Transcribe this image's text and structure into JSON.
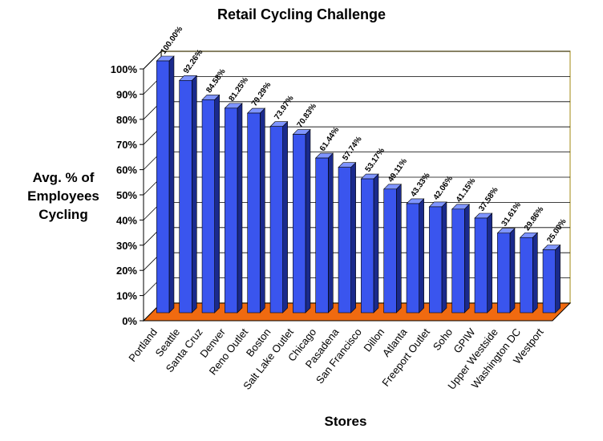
{
  "chart_data": {
    "type": "bar",
    "title": "Retail Cycling Challenge",
    "ylabel": "Avg. % of Employees Cycling",
    "xlabel": "Stores",
    "categories": [
      "Portland",
      "Seattle",
      "Santa Cruz",
      "Denver",
      "Reno Outlet",
      "Boston",
      "Salt Lake Outlet",
      "Chicago",
      "Pasadena",
      "San Francisco",
      "Dillon",
      "Atlanta",
      "Freeport Outlet",
      "Soho",
      "GPIW",
      "Upper Westside",
      "Washington DC",
      "Westport"
    ],
    "values": [
      100.0,
      92.26,
      84.58,
      81.25,
      79.29,
      73.97,
      70.83,
      61.44,
      57.74,
      53.17,
      49.11,
      43.33,
      42.06,
      41.15,
      37.58,
      31.61,
      29.86,
      25.0
    ],
    "data_labels": [
      "100.00%",
      "92.26%",
      "84.58%",
      "81.25%",
      "79.29%",
      "73.97%",
      "70.83%",
      "61.44%",
      "57.74%",
      "53.17%",
      "49.11%",
      "43.33%",
      "42.06%",
      "41.15%",
      "37.58%",
      "31.61%",
      "29.86%",
      "25.00%"
    ],
    "yticks": [
      "0%",
      "10%",
      "20%",
      "30%",
      "40%",
      "50%",
      "60%",
      "70%",
      "80%",
      "90%",
      "100%"
    ],
    "ylim": [
      0,
      100
    ],
    "grid": true,
    "colors": {
      "bar": "#3a55ee",
      "bar_side": "#1a2a8c",
      "bar_top": "#7f95ff",
      "floor": "#f06a10",
      "walls": "#ffffff",
      "wall_edge": "#c0b060"
    }
  }
}
